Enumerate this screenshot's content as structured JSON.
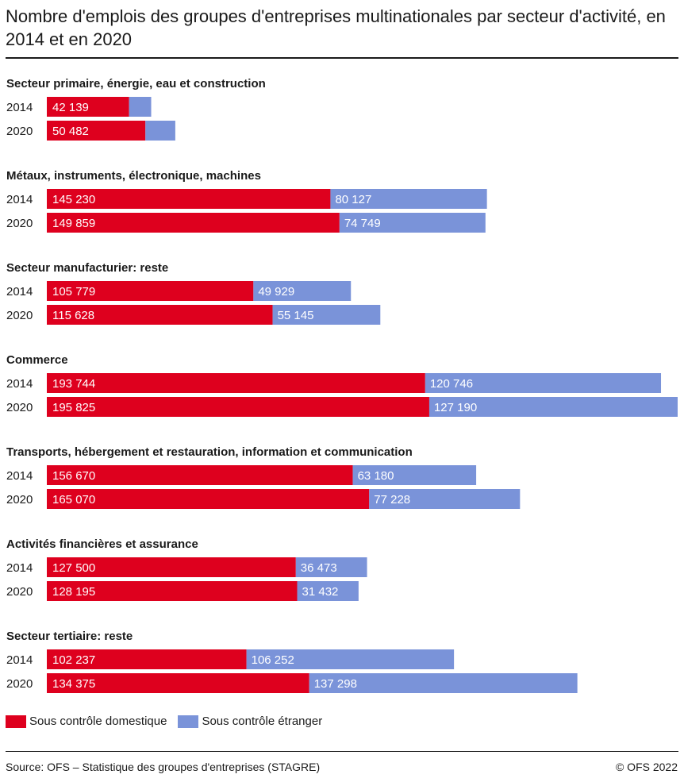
{
  "title": "Nombre d'emplois des groupes d'entreprises multinationales par secteur d'activité, en 2014 et en 2020",
  "legend": {
    "domestic_label": "Sous contrôle domestique",
    "foreign_label": "Sous contrôle étranger"
  },
  "colors": {
    "domestic": "#de001e",
    "foreign": "#7a93d9"
  },
  "source": "Source: OFS – Statistique des groupes d'entreprises (STAGRE)",
  "copyright": "© OFS 2022",
  "chart_data": {
    "type": "bar",
    "orientation": "horizontal",
    "stacked": true,
    "series": [
      {
        "name": "Sous contrôle domestique",
        "color": "#de001e"
      },
      {
        "name": "Sous contrôle étranger",
        "color": "#7a93d9"
      }
    ],
    "groups": [
      {
        "sector": "Secteur primaire, énergie, eau et construction",
        "rows": [
          {
            "year": "2014",
            "domestic": 42139,
            "domestic_label": "42 139",
            "foreign": 11300,
            "foreign_label": ""
          },
          {
            "year": "2020",
            "domestic": 50482,
            "domestic_label": "50 482",
            "foreign": 15300,
            "foreign_label": ""
          }
        ]
      },
      {
        "sector": "Métaux, instruments, électronique, machines",
        "rows": [
          {
            "year": "2014",
            "domestic": 145230,
            "domestic_label": "145 230",
            "foreign": 80127,
            "foreign_label": "80 127"
          },
          {
            "year": "2020",
            "domestic": 149859,
            "domestic_label": "149 859",
            "foreign": 74749,
            "foreign_label": "74 749"
          }
        ]
      },
      {
        "sector": "Secteur manufacturier: reste",
        "rows": [
          {
            "year": "2014",
            "domestic": 105779,
            "domestic_label": "105 779",
            "foreign": 49929,
            "foreign_label": "49 929"
          },
          {
            "year": "2020",
            "domestic": 115628,
            "domestic_label": "115 628",
            "foreign": 55145,
            "foreign_label": "55 145"
          }
        ]
      },
      {
        "sector": "Commerce",
        "rows": [
          {
            "year": "2014",
            "domestic": 193744,
            "domestic_label": "193 744",
            "foreign": 120746,
            "foreign_label": "120 746"
          },
          {
            "year": "2020",
            "domestic": 195825,
            "domestic_label": "195 825",
            "foreign": 127190,
            "foreign_label": "127 190"
          }
        ]
      },
      {
        "sector": "Transports, hébergement et restauration, information et communication",
        "rows": [
          {
            "year": "2014",
            "domestic": 156670,
            "domestic_label": "156 670",
            "foreign": 63180,
            "foreign_label": "63 180"
          },
          {
            "year": "2020",
            "domestic": 165070,
            "domestic_label": "165 070",
            "foreign": 77228,
            "foreign_label": "77 228"
          }
        ]
      },
      {
        "sector": "Activités financières et assurance",
        "rows": [
          {
            "year": "2014",
            "domestic": 127500,
            "domestic_label": "127 500",
            "foreign": 36473,
            "foreign_label": "36 473"
          },
          {
            "year": "2020",
            "domestic": 128195,
            "domestic_label": "128 195",
            "foreign": 31432,
            "foreign_label": "31 432"
          }
        ]
      },
      {
        "sector": "Secteur tertiaire: reste",
        "rows": [
          {
            "year": "2014",
            "domestic": 102237,
            "domestic_label": "102 237",
            "foreign": 106252,
            "foreign_label": "106 252"
          },
          {
            "year": "2020",
            "domestic": 134375,
            "domestic_label": "134 375",
            "foreign": 137298,
            "foreign_label": "137 298"
          }
        ]
      }
    ],
    "xlim": [
      0,
      323015
    ],
    "grid": false,
    "legend_position": "bottom-left"
  }
}
